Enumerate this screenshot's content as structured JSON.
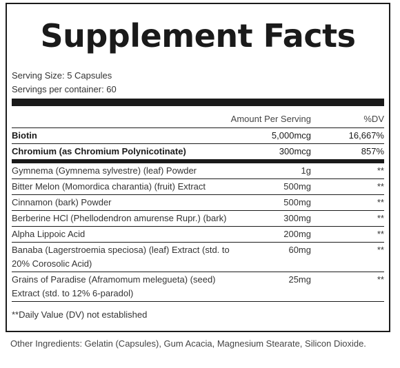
{
  "title": "Supplement Facts",
  "serving_size": "Serving Size: 5 Capsules",
  "servings_per_container": "Servings per container: 60",
  "columns": {
    "amount": "Amount Per Serving",
    "dv": "%DV"
  },
  "rows": [
    {
      "name": "Biotin",
      "amount": "5,000mcg",
      "dv": "16,667%"
    },
    {
      "name": "Chromium (as Chromium Polynicotinate)",
      "amount": "300mcg",
      "dv": "857%"
    },
    {
      "name": "Gymnema (Gymnema sylvestre) (leaf) Powder",
      "amount": "1g",
      "dv": "**"
    },
    {
      "name": "Bitter Melon (Momordica charantia) (fruit) Extract",
      "amount": "500mg",
      "dv": "**"
    },
    {
      "name": "Cinnamon (bark) Powder",
      "amount": "500mg",
      "dv": "**"
    },
    {
      "name": "Berberine HCl (Phellodendron amurense Rupr.) (bark)",
      "amount": "300mg",
      "dv": "**"
    },
    {
      "name": "Alpha Lippoic Acid",
      "amount": "200mg",
      "dv": "**"
    },
    {
      "name": "Banaba (Lagerstroemia speciosa) (leaf) Extract (std. to 20% Corosolic Acid)",
      "amount": "60mg",
      "dv": "**"
    },
    {
      "name": "Grains of Paradise (Aframomum melegueta) (seed) Extract (std. to 12% 6-paradol)",
      "amount": "25mg",
      "dv": "**"
    }
  ],
  "footnote": "**Daily Value (DV) not established",
  "other_ingredients": "Other Ingredients: Gelatin (Capsules), Gum Acacia, Magnesium Stearate, Silicon Dioxide."
}
